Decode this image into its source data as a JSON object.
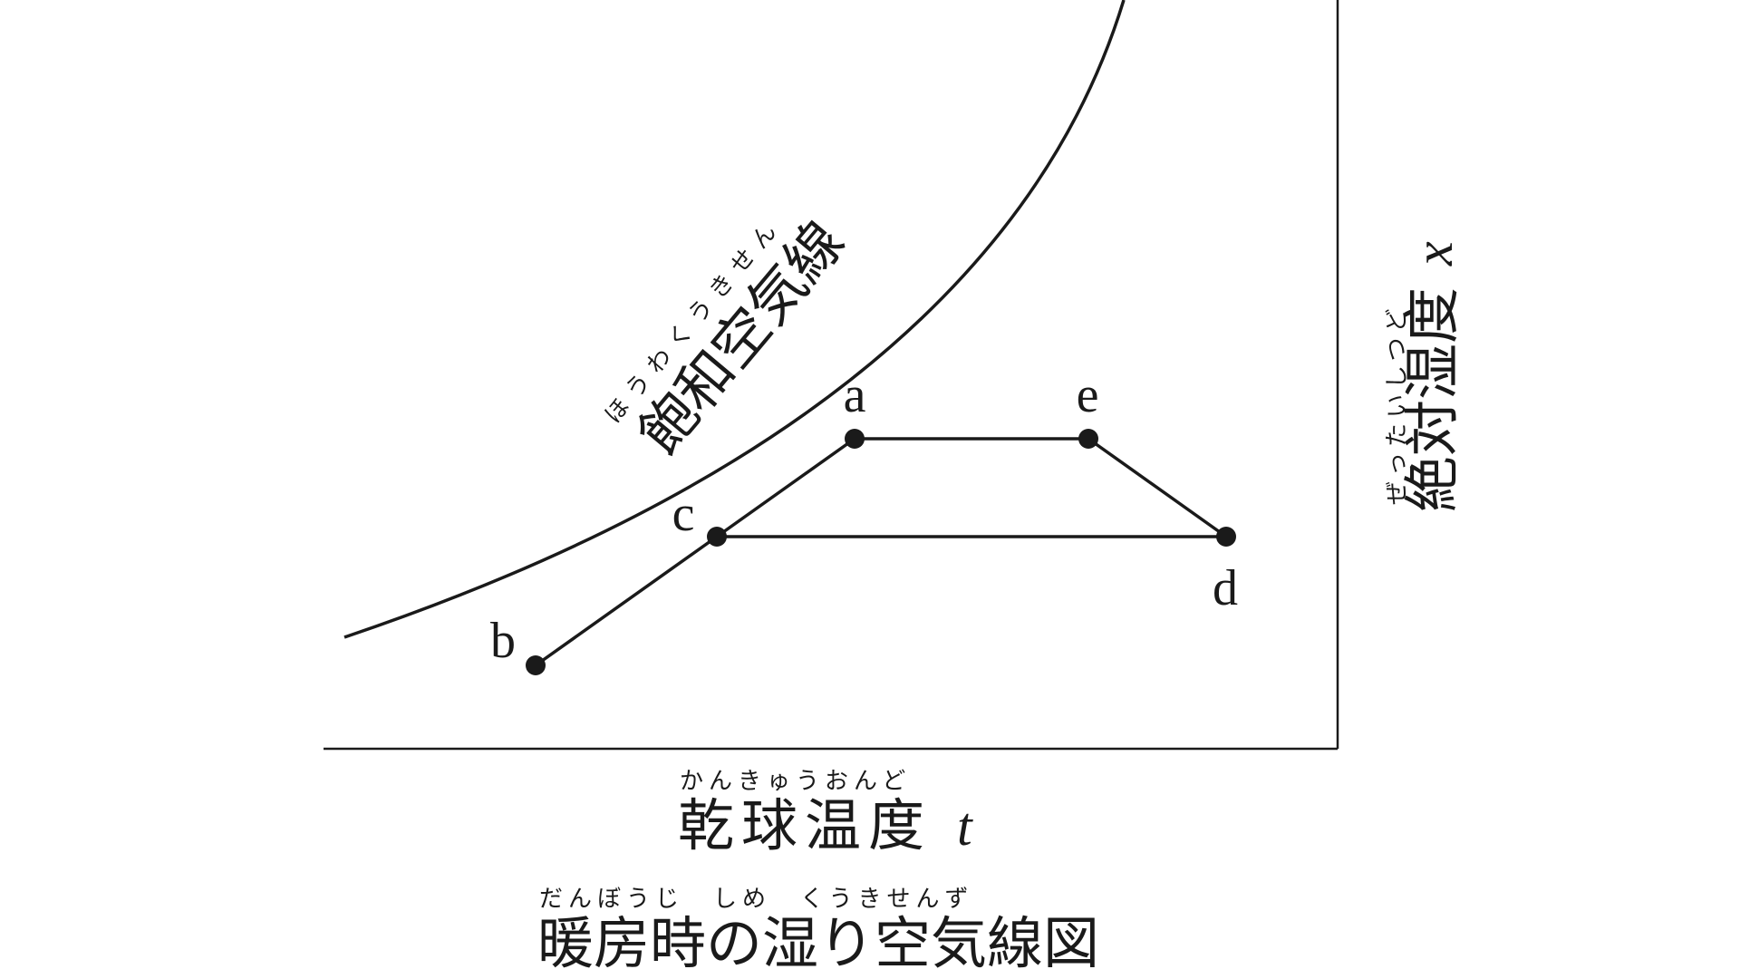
{
  "diagram": {
    "curve_label": {
      "kanji": "飽和空気線",
      "ruby": "ほうわくうきせん"
    },
    "x_axis_label": {
      "kanji": "乾球温度",
      "variable": "t",
      "ruby": "かんきゅうおんど"
    },
    "y_axis_label": {
      "kanji": "絶対湿度",
      "variable": "x",
      "ruby": "ぜったいしつど"
    },
    "caption": {
      "kanji": "暖房時の湿り空気線図",
      "ruby": "だんぼうじ　しめ　くうきせんず"
    },
    "points": [
      {
        "id": "a",
        "label": "a"
      },
      {
        "id": "b",
        "label": "b"
      },
      {
        "id": "c",
        "label": "c"
      },
      {
        "id": "d",
        "label": "d"
      },
      {
        "id": "e",
        "label": "e"
      }
    ],
    "connections": [
      {
        "from": "b",
        "to": "c"
      },
      {
        "from": "c",
        "to": "a"
      },
      {
        "from": "a",
        "to": "e"
      },
      {
        "from": "e",
        "to": "d"
      },
      {
        "from": "d",
        "to": "c"
      }
    ]
  }
}
